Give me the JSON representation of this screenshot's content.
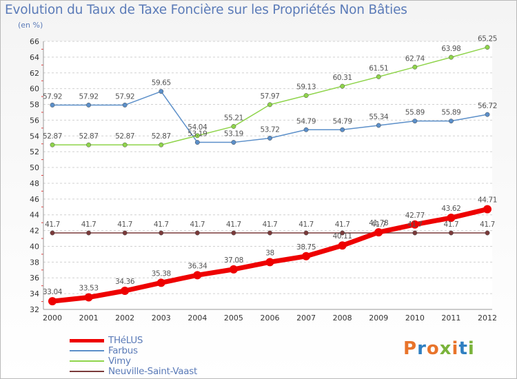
{
  "title": "Evolution du Taux de Taxe Foncière sur les Propriétés Non Bâties",
  "subtitle": "(en %)",
  "brand": {
    "text": "Proxiti",
    "colors": [
      "#e8742b",
      "#2f7fc1",
      "#e8742b",
      "#7ab33b",
      "#e8742b",
      "#2f7fc1",
      "#7ab33b"
    ]
  },
  "chart_data": {
    "type": "line",
    "x": [
      "2000",
      "2001",
      "2002",
      "2003",
      "2004",
      "2005",
      "2006",
      "2007",
      "2008",
      "2009",
      "2010",
      "2011",
      "2012"
    ],
    "ylim": [
      32,
      66
    ],
    "yticks": [
      32,
      34,
      36,
      38,
      40,
      42,
      44,
      46,
      48,
      50,
      52,
      54,
      56,
      58,
      60,
      62,
      64,
      66
    ],
    "grid": "dashed horizontal",
    "legend_position": "bottom-left",
    "series": [
      {
        "name": "THéLUS",
        "color": "#ee0000",
        "values": [
          33.04,
          33.53,
          34.36,
          35.38,
          36.34,
          37.08,
          38,
          38.75,
          40.11,
          41.78,
          42.77,
          43.62,
          44.71
        ],
        "labels": [
          "33.04",
          "33.53",
          "34.36",
          "35.38",
          "36.34",
          "37.08",
          "38",
          "38.75",
          "40.11",
          "41.78",
          "42.77",
          "43.62",
          "44.71"
        ]
      },
      {
        "name": "Farbus",
        "color": "#5b8fc9",
        "values": [
          57.92,
          57.92,
          57.92,
          59.65,
          53.19,
          53.19,
          53.72,
          54.79,
          54.79,
          55.34,
          55.89,
          55.89,
          56.72
        ],
        "labels": [
          "57.92",
          "57.92",
          "57.92",
          "59.65",
          "53.19",
          "53.19",
          "53.72",
          "54.79",
          "54.79",
          "55.34",
          "55.89",
          "55.89",
          "56.72"
        ]
      },
      {
        "name": "Vimy",
        "color": "#8fd44b",
        "values": [
          52.87,
          52.87,
          52.87,
          52.87,
          54.04,
          55.21,
          57.97,
          59.13,
          60.31,
          61.51,
          62.74,
          63.98,
          65.25
        ],
        "labels": [
          "52.87",
          "52.87",
          "52.87",
          "52.87",
          "54.04",
          "55.21",
          "57.97",
          "59.13",
          "60.31",
          "61.51",
          "62.74",
          "63.98",
          "65.25"
        ]
      },
      {
        "name": "Neuville-Saint-Vaast",
        "color": "#7a3a3a",
        "values": [
          41.7,
          41.7,
          41.7,
          41.7,
          41.7,
          41.7,
          41.7,
          41.7,
          41.7,
          41.7,
          41.7,
          41.7,
          41.7
        ],
        "labels": [
          "41.7",
          "41.7",
          "41.7",
          "41.7",
          "41.7",
          "41.7",
          "41.7",
          "41.7",
          "41.7",
          "41.7",
          "41.7",
          "41.7",
          "41.7"
        ]
      }
    ]
  }
}
